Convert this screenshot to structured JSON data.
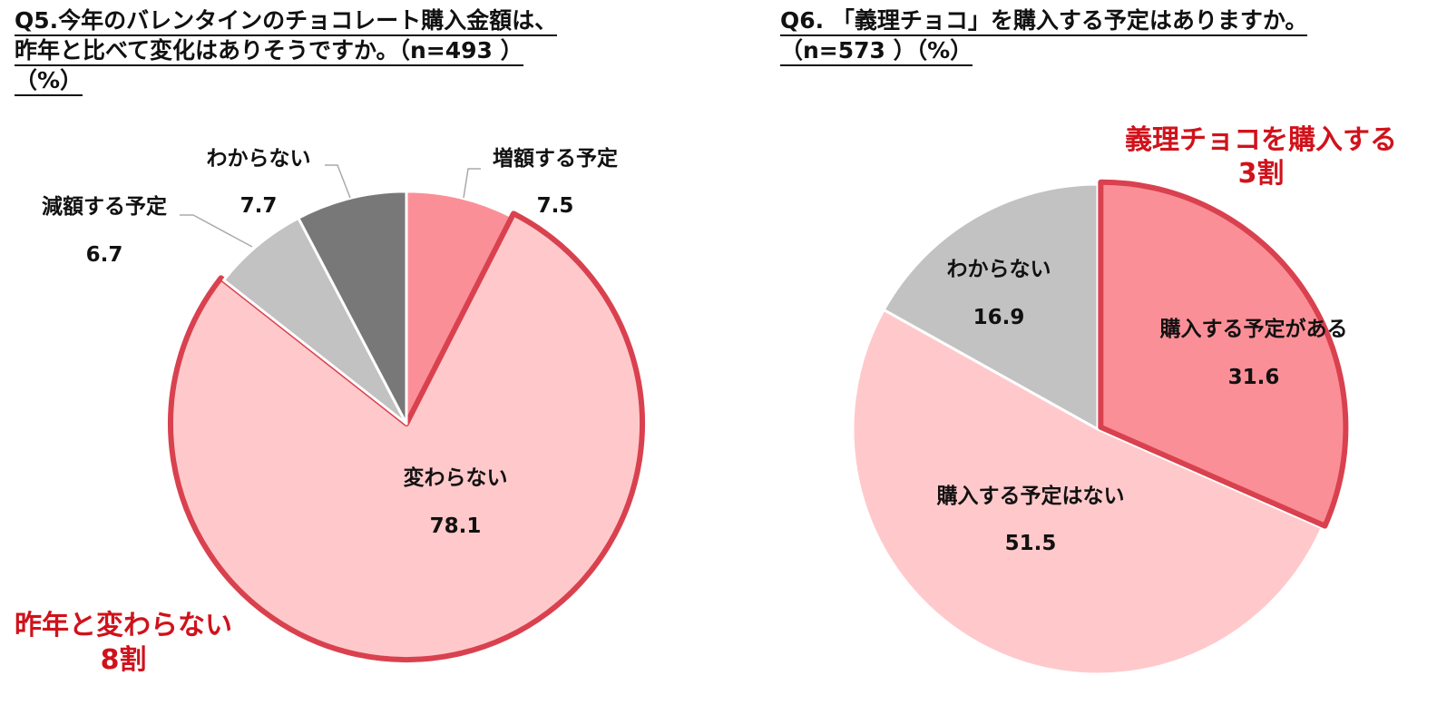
{
  "chart_data": [
    {
      "type": "pie",
      "title_lines": [
        "Q5.今年のバレンタインのチョコレート購入金額は、",
        "昨年と比べて変化はありそうですか。（n=493 ）",
        "（%）"
      ],
      "slices": [
        {
          "label": "増額する予定",
          "value": 7.5,
          "value_label": "7.5",
          "color": "#fb8f97",
          "highlighted": false
        },
        {
          "label": "変わらない",
          "value": 78.1,
          "value_label": "78.1",
          "color": "#ffc9cb",
          "highlighted": true
        },
        {
          "label": "減額する予定",
          "value": 6.7,
          "value_label": "6.7",
          "color": "#c2c2c2",
          "highlighted": false
        },
        {
          "label": "わからない",
          "value": 7.7,
          "value_label": "7.7",
          "color": "#787878",
          "highlighted": false
        }
      ],
      "callout": {
        "lines": [
          "昨年と変わらない",
          "8割"
        ],
        "color": "#d0121b"
      }
    },
    {
      "type": "pie",
      "title_lines": [
        "Q6. 「義理チョコ」を購入する予定はありますか。",
        "（n=573 ）（%）"
      ],
      "slices": [
        {
          "label": "購入する予定がある",
          "value": 31.6,
          "value_label": "31.6",
          "color": "#fb8f97",
          "highlighted": true
        },
        {
          "label": "購入する予定はない",
          "value": 51.5,
          "value_label": "51.5",
          "color": "#ffc9cb",
          "highlighted": false
        },
        {
          "label": "わからない",
          "value": 16.9,
          "value_label": "16.9",
          "color": "#c2c2c2",
          "highlighted": false
        }
      ],
      "callout": {
        "lines": [
          "義理チョコを購入する",
          "3割"
        ],
        "color": "#d0121b"
      }
    }
  ],
  "style": {
    "highlight_border_color": "#d9414f",
    "separator_color": "#ffffff",
    "leader_line_color": "#aaaaaa"
  }
}
